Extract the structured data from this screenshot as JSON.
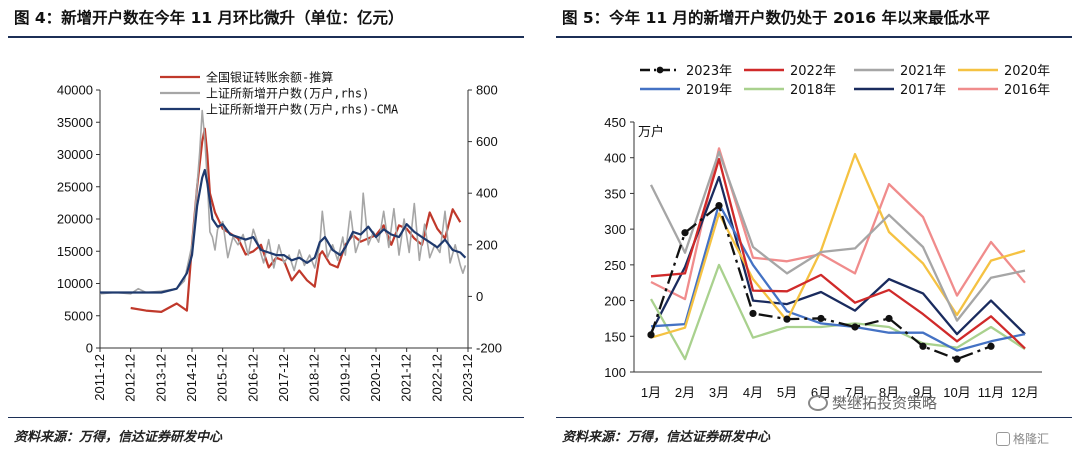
{
  "panel1": {
    "title": "图 4：新增开户数在今年 11 月环比微升（单位：亿元）",
    "source": "资料来源：万得，信达证券研发中心"
  },
  "panel2": {
    "title": "图 5：今年 11 月的新增开户数仍处于 2016 年以来最低水平",
    "source": "资料来源：万得，信达证券研发中心"
  },
  "watermark": "樊继拓投资策略",
  "logo": "格隆汇",
  "chart_data": [
    {
      "type": "line",
      "x_start": "2011-12",
      "x_step": "month",
      "x_tick_labels": [
        "2011-12",
        "2012-12",
        "2013-12",
        "2014-12",
        "2015-12",
        "2016-12",
        "2017-12",
        "2018-12",
        "2019-12",
        "2020-12",
        "2021-12",
        "2022-12",
        "2023-12"
      ],
      "y_left": {
        "ylim": [
          0,
          40000
        ],
        "ticks": [
          0,
          5000,
          10000,
          15000,
          20000,
          25000,
          30000,
          35000,
          40000
        ]
      },
      "y_right": {
        "ylim": [
          -200,
          800
        ],
        "ticks": [
          -200,
          0,
          200,
          400,
          600,
          800
        ]
      },
      "grid": false,
      "legend_position": "top",
      "series": [
        {
          "name": "全国银证转账余额-推算",
          "axis": "left",
          "color": "#c0392b",
          "points": [
            [
              "2012-12",
              6200
            ],
            [
              "2013-06",
              5800
            ],
            [
              "2013-12",
              5600
            ],
            [
              "2014-06",
              6900
            ],
            [
              "2014-10",
              5800
            ],
            [
              "2014-12",
              16000
            ],
            [
              "2015-02",
              25000
            ],
            [
              "2015-04",
              32000
            ],
            [
              "2015-05",
              34000
            ],
            [
              "2015-06",
              30000
            ],
            [
              "2015-07",
              24000
            ],
            [
              "2015-09",
              21000
            ],
            [
              "2015-12",
              18500
            ],
            [
              "2016-06",
              17000
            ],
            [
              "2016-09",
              14500
            ],
            [
              "2016-12",
              15000
            ],
            [
              "2017-03",
              16000
            ],
            [
              "2017-06",
              12500
            ],
            [
              "2017-09",
              14000
            ],
            [
              "2017-12",
              13500
            ],
            [
              "2018-03",
              10500
            ],
            [
              "2018-06",
              12000
            ],
            [
              "2018-09",
              10500
            ],
            [
              "2018-12",
              9500
            ],
            [
              "2019-02",
              14500
            ],
            [
              "2019-03",
              15000
            ],
            [
              "2019-06",
              13000
            ],
            [
              "2019-09",
              12500
            ],
            [
              "2019-12",
              16000
            ],
            [
              "2020-03",
              17500
            ],
            [
              "2020-06",
              16500
            ],
            [
              "2020-09",
              17000
            ],
            [
              "2020-12",
              17500
            ],
            [
              "2021-03",
              19000
            ],
            [
              "2021-06",
              16000
            ],
            [
              "2021-09",
              19000
            ],
            [
              "2021-12",
              18500
            ],
            [
              "2022-03",
              17000
            ],
            [
              "2022-06",
              16000
            ],
            [
              "2022-09",
              21000
            ],
            [
              "2022-12",
              18500
            ],
            [
              "2023-03",
              17000
            ],
            [
              "2023-06",
              21500
            ],
            [
              "2023-09",
              19500
            ]
          ]
        },
        {
          "name": "上证所新增开户数(万户,rhs)",
          "axis": "right",
          "color": "#a6a6a6",
          "points": [
            [
              "2011-12",
              10
            ],
            [
              "2012-06",
              15
            ],
            [
              "2012-12",
              10
            ],
            [
              "2013-03",
              30
            ],
            [
              "2013-06",
              15
            ],
            [
              "2013-12",
              20
            ],
            [
              "2014-03",
              25
            ],
            [
              "2014-06",
              30
            ],
            [
              "2014-09",
              60
            ],
            [
              "2014-12",
              200
            ],
            [
              "2015-01",
              310
            ],
            [
              "2015-03",
              560
            ],
            [
              "2015-04",
              720
            ],
            [
              "2015-05",
              610
            ],
            [
              "2015-06",
              450
            ],
            [
              "2015-07",
              250
            ],
            [
              "2015-08",
              230
            ],
            [
              "2015-09",
              180
            ],
            [
              "2015-10",
              260
            ],
            [
              "2015-12",
              290
            ],
            [
              "2016-02",
              150
            ],
            [
              "2016-04",
              230
            ],
            [
              "2016-06",
              200
            ],
            [
              "2016-08",
              240
            ],
            [
              "2016-10",
              160
            ],
            [
              "2016-12",
              260
            ],
            [
              "2017-02",
              200
            ],
            [
              "2017-04",
              130
            ],
            [
              "2017-06",
              220
            ],
            [
              "2017-08",
              110
            ],
            [
              "2017-10",
              200
            ],
            [
              "2017-12",
              130
            ],
            [
              "2018-02",
              160
            ],
            [
              "2018-04",
              100
            ],
            [
              "2018-06",
              180
            ],
            [
              "2018-08",
              120
            ],
            [
              "2018-10",
              160
            ],
            [
              "2018-12",
              110
            ],
            [
              "2019-02",
              200
            ],
            [
              "2019-03",
              330
            ],
            [
              "2019-05",
              150
            ],
            [
              "2019-07",
              200
            ],
            [
              "2019-09",
              140
            ],
            [
              "2019-11",
              230
            ],
            [
              "2019-12",
              160
            ],
            [
              "2020-02",
              330
            ],
            [
              "2020-04",
              170
            ],
            [
              "2020-06",
              230
            ],
            [
              "2020-07",
              400
            ],
            [
              "2020-09",
              200
            ],
            [
              "2020-11",
              250
            ],
            [
              "2021-01",
              210
            ],
            [
              "2021-03",
              330
            ],
            [
              "2021-05",
              190
            ],
            [
              "2021-07",
              340
            ],
            [
              "2021-09",
              160
            ],
            [
              "2021-11",
              300
            ],
            [
              "2022-01",
              170
            ],
            [
              "2022-03",
              360
            ],
            [
              "2022-05",
              140
            ],
            [
              "2022-07",
              280
            ],
            [
              "2022-09",
              150
            ],
            [
              "2022-11",
              200
            ],
            [
              "2023-01",
              170
            ],
            [
              "2023-03",
              330
            ],
            [
              "2023-05",
              130
            ],
            [
              "2023-07",
              200
            ],
            [
              "2023-09",
              120
            ],
            [
              "2023-10",
              90
            ],
            [
              "2023-11",
              120
            ]
          ]
        },
        {
          "name": "上证所新增开户数(万户,rhs)-CMA",
          "axis": "right",
          "color": "#1f3a6e",
          "points": [
            [
              "2011-12",
              15
            ],
            [
              "2012-12",
              15
            ],
            [
              "2013-12",
              15
            ],
            [
              "2014-06",
              30
            ],
            [
              "2014-10",
              90
            ],
            [
              "2014-12",
              160
            ],
            [
              "2015-02",
              350
            ],
            [
              "2015-04",
              460
            ],
            [
              "2015-05",
              490
            ],
            [
              "2015-06",
              440
            ],
            [
              "2015-08",
              300
            ],
            [
              "2015-10",
              270
            ],
            [
              "2015-12",
              280
            ],
            [
              "2016-03",
              240
            ],
            [
              "2016-06",
              230
            ],
            [
              "2016-09",
              220
            ],
            [
              "2016-12",
              230
            ],
            [
              "2017-03",
              180
            ],
            [
              "2017-06",
              170
            ],
            [
              "2017-09",
              160
            ],
            [
              "2017-12",
              160
            ],
            [
              "2018-03",
              140
            ],
            [
              "2018-06",
              150
            ],
            [
              "2018-09",
              130
            ],
            [
              "2018-12",
              150
            ],
            [
              "2019-02",
              210
            ],
            [
              "2019-04",
              230
            ],
            [
              "2019-07",
              180
            ],
            [
              "2019-10",
              160
            ],
            [
              "2019-12",
              190
            ],
            [
              "2020-03",
              250
            ],
            [
              "2020-06",
              240
            ],
            [
              "2020-09",
              270
            ],
            [
              "2020-12",
              230
            ],
            [
              "2021-03",
              260
            ],
            [
              "2021-06",
              240
            ],
            [
              "2021-09",
              230
            ],
            [
              "2021-12",
              280
            ],
            [
              "2022-03",
              250
            ],
            [
              "2022-06",
              230
            ],
            [
              "2022-09",
              210
            ],
            [
              "2022-12",
              190
            ],
            [
              "2023-03",
              220
            ],
            [
              "2023-06",
              180
            ],
            [
              "2023-09",
              170
            ],
            [
              "2023-11",
              150
            ]
          ]
        }
      ]
    },
    {
      "type": "line",
      "unit": "万户",
      "categories": [
        "1月",
        "2月",
        "3月",
        "4月",
        "5月",
        "6月",
        "7月",
        "8月",
        "9月",
        "10月",
        "11月",
        "12月"
      ],
      "ylim": [
        100,
        450
      ],
      "yticks": [
        100,
        150,
        200,
        250,
        300,
        350,
        400,
        450
      ],
      "grid": false,
      "legend_position": "top",
      "series": [
        {
          "name": "2023年",
          "color": "#111111",
          "style": "dashdot-markers",
          "values": [
            152,
            295,
            333,
            182,
            174,
            175,
            163,
            175,
            136,
            118,
            136,
            null
          ]
        },
        {
          "name": "2022年",
          "color": "#d02a2a",
          "values": [
            234,
            238,
            398,
            214,
            213,
            236,
            197,
            215,
            181,
            143,
            178,
            133
          ]
        },
        {
          "name": "2021年",
          "color": "#a6a6a6",
          "values": [
            362,
            267,
            408,
            275,
            238,
            268,
            273,
            320,
            275,
            172,
            232,
            242
          ]
        },
        {
          "name": "2020年",
          "color": "#f5c242",
          "values": [
            148,
            162,
            322,
            230,
            172,
            270,
            405,
            296,
            252,
            180,
            256,
            270
          ]
        },
        {
          "name": "2019年",
          "color": "#4472c4",
          "values": [
            164,
            167,
            335,
            250,
            185,
            168,
            163,
            155,
            155,
            130,
            143,
            153
          ]
        },
        {
          "name": "2018年",
          "color": "#a9d18e",
          "values": [
            202,
            118,
            250,
            148,
            163,
            163,
            168,
            163,
            140,
            134,
            163,
            132
          ]
        },
        {
          "name": "2017年",
          "color": "#1a2b5e",
          "values": [
            155,
            247,
            373,
            200,
            195,
            212,
            186,
            230,
            210,
            153,
            200,
            153
          ]
        },
        {
          "name": "2016年",
          "color": "#f08c8c",
          "values": [
            226,
            202,
            413,
            260,
            255,
            265,
            238,
            363,
            317,
            207,
            282,
            225
          ]
        }
      ]
    }
  ]
}
